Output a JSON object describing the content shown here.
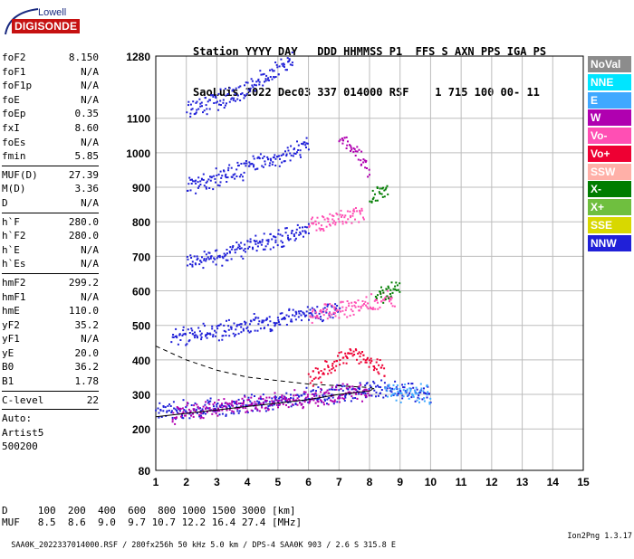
{
  "logo": {
    "line1": "Lowell",
    "line2": "DIGISONDE",
    "accent": "#c61111",
    "ink": "#1a2a80"
  },
  "header": {
    "line1": "Station YYYY DAY   DDD HHMMSS P1  FFS S AXN PPS IGA PS",
    "line2": "SaoLuis 2022 Dec03 337 014000 RSF    1 715 100 00- 11"
  },
  "params": {
    "group1": [
      {
        "label": "foF2",
        "value": "8.150"
      },
      {
        "label": "foF1",
        "value": "N/A"
      },
      {
        "label": "foF1p",
        "value": "N/A"
      },
      {
        "label": "foE",
        "value": "N/A"
      },
      {
        "label": "foEp",
        "value": "0.35"
      },
      {
        "label": "fxI",
        "value": "8.60"
      },
      {
        "label": "foEs",
        "value": "N/A"
      },
      {
        "label": "fmin",
        "value": "5.85"
      }
    ],
    "group2": [
      {
        "label": "MUF(D)",
        "value": "27.39"
      },
      {
        "label": "M(D)",
        "value": "3.36"
      },
      {
        "label": "D",
        "value": "N/A"
      }
    ],
    "group3": [
      {
        "label": "h`F",
        "value": "280.0"
      },
      {
        "label": "h`F2",
        "value": "280.0"
      },
      {
        "label": "h`E",
        "value": "N/A"
      },
      {
        "label": "h`Es",
        "value": "N/A"
      }
    ],
    "group4": [
      {
        "label": "hmF2",
        "value": "299.2"
      },
      {
        "label": "hmF1",
        "value": "N/A"
      },
      {
        "label": "hmE",
        "value": "110.0"
      },
      {
        "label": "yF2",
        "value": "35.2"
      },
      {
        "label": "yF1",
        "value": "N/A"
      },
      {
        "label": "yE",
        "value": "20.0"
      },
      {
        "label": "B0",
        "value": "36.2"
      },
      {
        "label": "B1",
        "value": "1.78"
      }
    ],
    "clevel": {
      "label": "C-level",
      "value": "22"
    },
    "auto": [
      "Auto:",
      "Artist5",
      "500200"
    ]
  },
  "legend": [
    {
      "label": "NoVal",
      "bg": "#8c8c8c",
      "fg": "#ffffff"
    },
    {
      "label": "NNE",
      "bg": "#00e5ff",
      "fg": "#ffffff"
    },
    {
      "label": "E",
      "bg": "#3fa8ff",
      "fg": "#ffffff"
    },
    {
      "label": "W",
      "bg": "#b000b0",
      "fg": "#ffffff"
    },
    {
      "label": "Vo-",
      "bg": "#ff4fb4",
      "fg": "#ffffff"
    },
    {
      "label": "Vo+",
      "bg": "#ee0033",
      "fg": "#ffffff"
    },
    {
      "label": "SSW",
      "bg": "#ffb0a8",
      "fg": "#ffffff"
    },
    {
      "label": "X-",
      "bg": "#007d00",
      "fg": "#ffffff"
    },
    {
      "label": "X+",
      "bg": "#6fbf3f",
      "fg": "#ffffff"
    },
    {
      "label": "SSE",
      "bg": "#d8d800",
      "fg": "#ffffff"
    },
    {
      "label": "NNW",
      "bg": "#2020d8",
      "fg": "#ffffff"
    }
  ],
  "muf_table": {
    "line1": "D     100  200  400  600  800 1000 1500 3000 [km]",
    "line2": "MUF   8.5  8.6  9.0  9.7 10.7 12.2 16.4 27.4 [MHz]"
  },
  "footer": {
    "left": "SAA0K_2022337014000.RSF / 280fx256h 50 kHz 5.0 km / DPS-4 SAA0K 903 / 2.6 S 315.8 E",
    "right": "Ion2Png 1.3.17"
  },
  "chart_data": {
    "type": "scatter",
    "x_ticks": [
      1,
      2,
      3,
      4,
      5,
      6,
      7,
      8,
      9,
      10,
      11,
      12,
      13,
      14,
      15
    ],
    "y_ticks": [
      80,
      200,
      300,
      400,
      500,
      600,
      700,
      800,
      900,
      1000,
      1100,
      1280
    ],
    "xlim": [
      1,
      15
    ],
    "ylim": [
      80,
      1280
    ],
    "grid": true,
    "echo_traces": [
      {
        "color": "#2020d8",
        "points": [
          [
            1.0,
            238
          ],
          [
            2,
            245
          ],
          [
            3,
            253
          ],
          [
            4,
            262
          ],
          [
            5,
            272
          ],
          [
            6,
            282
          ],
          [
            7,
            292
          ],
          [
            8,
            300
          ],
          [
            9,
            305
          ],
          [
            10,
            290
          ]
        ]
      },
      {
        "color": "#b000b0",
        "points": [
          [
            1.5,
            230
          ],
          [
            3,
            248
          ],
          [
            5,
            268
          ],
          [
            6.5,
            285
          ],
          [
            8,
            300
          ]
        ]
      },
      {
        "color": "#ee0033",
        "points": [
          [
            6,
            330
          ],
          [
            6.5,
            360
          ],
          [
            7,
            390
          ],
          [
            7.5,
            410
          ],
          [
            8,
            380
          ],
          [
            8.5,
            360
          ]
        ]
      },
      {
        "color": "#3fa8ff",
        "points": [
          [
            8.5,
            300
          ],
          [
            9.0,
            295
          ],
          [
            9.5,
            292
          ],
          [
            10,
            290
          ]
        ]
      },
      {
        "color": "#2020d8",
        "points": [
          [
            1.5,
            452
          ],
          [
            2,
            460
          ],
          [
            3,
            475
          ],
          [
            4,
            490
          ],
          [
            5,
            505
          ],
          [
            6,
            520
          ],
          [
            7,
            535
          ]
        ]
      },
      {
        "color": "#ff4fb4",
        "points": [
          [
            6,
            520
          ],
          [
            7,
            535
          ],
          [
            8,
            552
          ],
          [
            8.8,
            568
          ]
        ]
      },
      {
        "color": "#007d00",
        "points": [
          [
            8.2,
            575
          ],
          [
            9,
            600
          ]
        ]
      },
      {
        "color": "#2020d8",
        "points": [
          [
            2.0,
            672
          ],
          [
            3,
            690
          ],
          [
            4,
            715
          ],
          [
            5,
            740
          ],
          [
            6,
            770
          ]
        ]
      },
      {
        "color": "#ff4fb4",
        "points": [
          [
            6,
            778
          ],
          [
            7,
            798
          ],
          [
            7.8,
            818
          ]
        ]
      },
      {
        "color": "#007d00",
        "points": [
          [
            8,
            860
          ],
          [
            8.6,
            880
          ]
        ]
      },
      {
        "color": "#2020d8",
        "points": [
          [
            2.0,
            893
          ],
          [
            3,
            915
          ],
          [
            4,
            945
          ],
          [
            5,
            978
          ],
          [
            6,
            1010
          ]
        ]
      },
      {
        "color": "#b000b0",
        "points": [
          [
            7,
            1040
          ],
          [
            8,
            940
          ]
        ]
      },
      {
        "color": "#2020d8",
        "points": [
          [
            2.0,
            1108
          ],
          [
            3,
            1140
          ],
          [
            4,
            1180
          ],
          [
            5,
            1230
          ],
          [
            5.5,
            1262
          ]
        ]
      }
    ],
    "fitted_curve": {
      "color": "#000000",
      "points": [
        [
          1.0,
          235
        ],
        [
          2,
          245
        ],
        [
          3,
          255
        ],
        [
          4,
          265
        ],
        [
          5,
          275
        ],
        [
          6,
          285
        ],
        [
          7,
          300
        ],
        [
          8,
          310
        ],
        [
          8.1,
          315
        ]
      ]
    },
    "dashed_curve": {
      "color": "#000000",
      "points": [
        [
          1.0,
          440
        ],
        [
          2,
          400
        ],
        [
          3,
          370
        ],
        [
          4,
          350
        ],
        [
          5,
          340
        ],
        [
          6,
          330
        ],
        [
          7,
          325
        ],
        [
          8,
          320
        ],
        [
          8.2,
          315
        ]
      ]
    }
  }
}
